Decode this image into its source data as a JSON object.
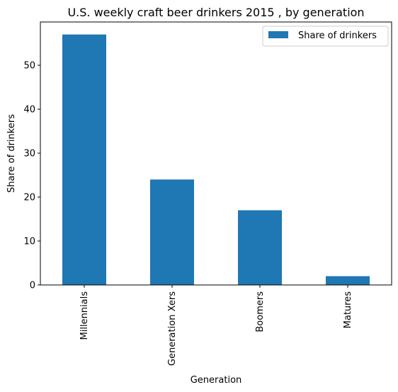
{
  "chart_data": {
    "type": "bar",
    "title": "U.S. weekly craft beer drinkers 2015 , by generation",
    "xlabel": "Generation",
    "ylabel": "Share of drinkers",
    "categories": [
      "Millennials",
      "Generation Xers",
      "Boomers",
      "Matures"
    ],
    "series": [
      {
        "name": "Share of drinkers",
        "values": [
          57,
          24,
          17,
          2
        ],
        "color": "#1f77b4"
      }
    ],
    "ylim": [
      0,
      59.85
    ],
    "yticks": [
      0,
      10,
      20,
      30,
      40,
      50
    ],
    "grid": false,
    "legend_position": "top-right"
  }
}
